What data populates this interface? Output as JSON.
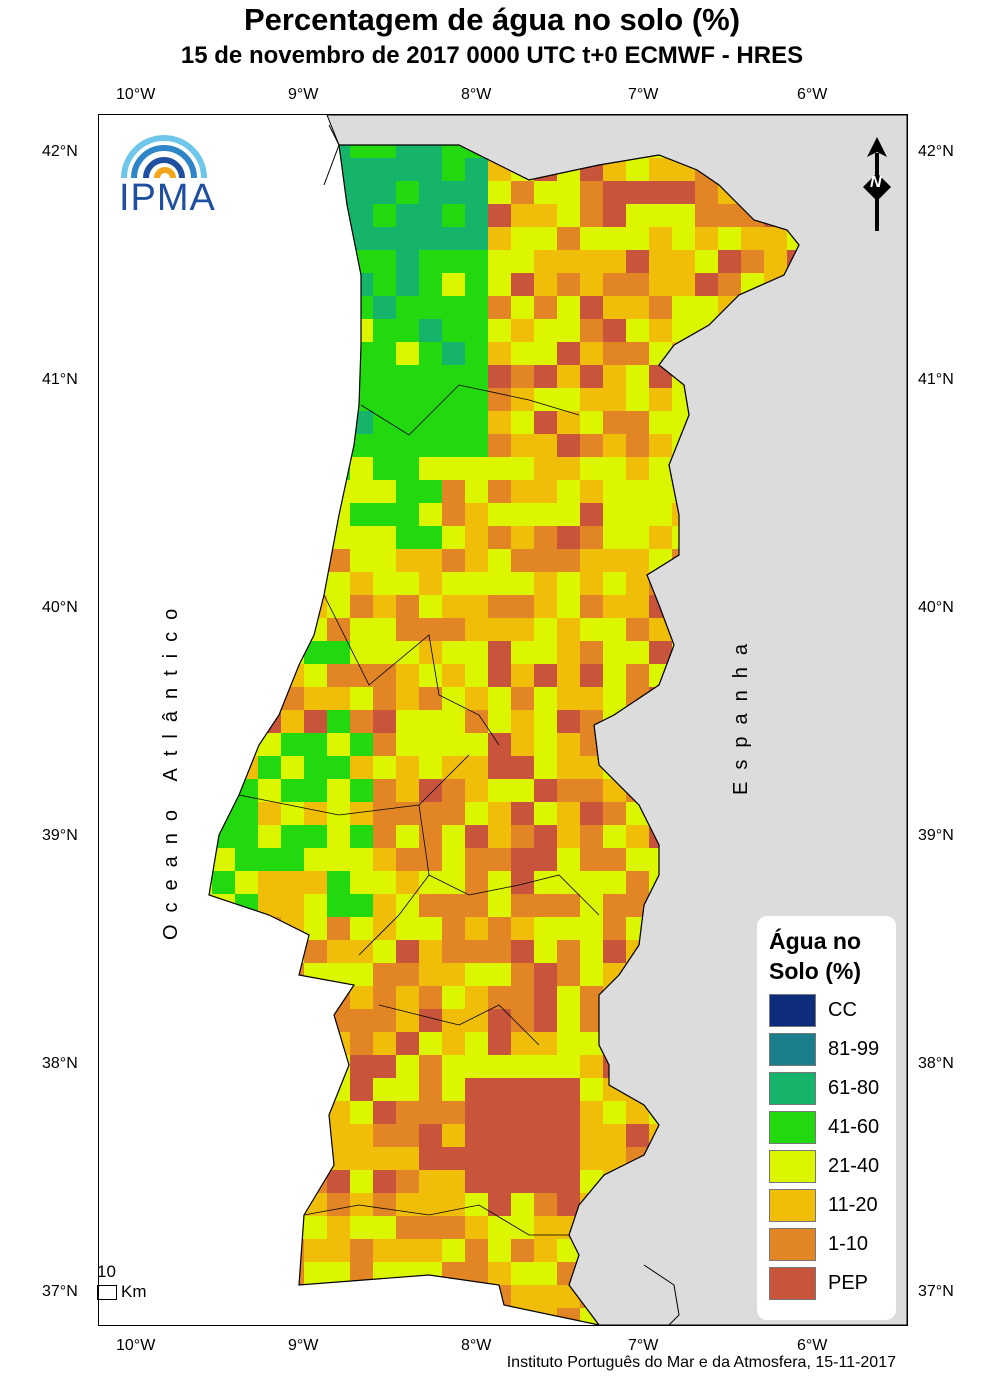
{
  "title": "Percentagem de água no solo (%)",
  "subtitle": "15 de novembro de 2017 0000 UTC t+0 ECMWF - HRES",
  "lon_ticks": [
    "10°W",
    "9°W",
    "8°W",
    "7°W",
    "6°W"
  ],
  "lat_ticks": [
    "42°N",
    "41°N",
    "40°N",
    "39°N",
    "38°N",
    "37°N"
  ],
  "logo_text": "IPMA",
  "north_arrow_letter": "N",
  "ocean_label": "Oceano Atlântico",
  "spain_label": "Espanha",
  "scale_value": "10",
  "scale_unit": "Km",
  "credit": "Instituto Português do Mar e da Atmosfera, 15-11-2017",
  "legend": {
    "title_line1": "Água no",
    "title_line2": "Solo (%)",
    "items": [
      {
        "label": "CC",
        "color": "#0d2c7c"
      },
      {
        "label": "81-99",
        "color": "#1a7f8c"
      },
      {
        "label": "61-80",
        "color": "#16b36a"
      },
      {
        "label": "41-60",
        "color": "#22d80e"
      },
      {
        "label": "21-40",
        "color": "#dcf600"
      },
      {
        "label": "11-20",
        "color": "#f0be08"
      },
      {
        "label": "1-10",
        "color": "#e28524"
      },
      {
        "label": "PEP",
        "color": "#c9543c"
      }
    ]
  },
  "colors": {
    "land": "#dcdcdc",
    "ocean": "#ffffff"
  }
}
